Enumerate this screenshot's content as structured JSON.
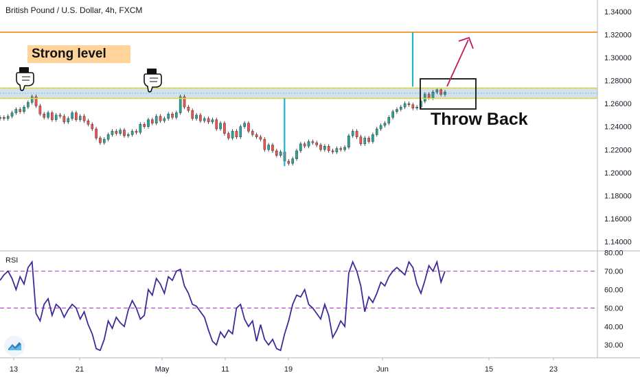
{
  "header": {
    "title": "British Pound / U.S. Dollar, 4h, FXCM"
  },
  "annotations": {
    "strong_level": "Strong level",
    "throw_back": "Throw Back"
  },
  "rsi_panel": {
    "label": "RSI"
  },
  "colors": {
    "candle_up": "#26a69a",
    "candle_down": "#ef5350",
    "resistance_line": "#f57c00",
    "zone_line": "#e6d23c",
    "zone_fill": "#cfe3ef",
    "measure": "#1fb3cb",
    "arrow": "#c2185b",
    "rsi_line": "#3c2a9a",
    "rsi_levels": "#b14fc6"
  },
  "icons": {
    "hand": "pointing-hand-icon",
    "logo": "tradingview-logo-icon"
  },
  "chart_data": [
    {
      "type": "candlestick",
      "title": "British Pound / U.S. Dollar, 4h, FXCM",
      "x_ticks": [
        "13",
        "21",
        "May",
        "11",
        "19",
        "Jun",
        "15",
        "23"
      ],
      "y_ticks": [
        "1.14000",
        "1.16000",
        "1.18000",
        "1.20000",
        "1.22000",
        "1.24000",
        "1.26000",
        "1.28000",
        "1.30000",
        "1.32000",
        "1.34000"
      ],
      "ylim": [
        1.132,
        1.35
      ],
      "horizontal_levels": [
        1.322,
        1.2735,
        1.2645
      ],
      "series": [
        {
          "values": [
            1.248,
            1.247,
            1.249,
            1.252,
            1.255,
            1.253,
            1.257,
            1.261,
            1.266,
            1.258,
            1.251,
            1.248,
            1.252,
            1.246,
            1.25,
            1.249,
            1.244,
            1.247,
            1.252,
            1.246,
            1.249,
            1.245,
            1.242,
            1.238,
            1.23,
            1.226,
            1.229,
            1.233,
            1.236,
            1.234,
            1.237,
            1.232,
            1.233,
            1.236,
            1.235,
            1.242,
            1.24,
            1.246,
            1.243,
            1.249,
            1.245,
            1.247,
            1.251,
            1.248,
            1.252,
            1.266,
            1.257,
            1.254,
            1.247,
            1.25,
            1.245,
            1.247,
            1.244,
            1.246,
            1.238,
            1.243,
            1.234,
            1.23,
            1.236,
            1.231,
            1.24,
            1.243,
            1.236,
            1.233,
            1.231,
            1.229,
            1.22,
            1.224,
            1.219,
            1.215,
            1.218,
            1.21,
            1.208,
            1.212,
            1.219,
            1.225,
            1.223,
            1.227,
            1.226,
            1.224,
            1.22,
            1.223,
            1.219,
            1.218,
            1.221,
            1.22,
            1.222,
            1.232,
            1.236,
            1.231,
            1.225,
            1.23,
            1.227,
            1.233,
            1.238,
            1.241,
            1.243,
            1.248,
            1.253,
            1.255,
            1.257,
            1.26,
            1.259,
            1.256,
            1.257,
            1.262,
            1.268,
            1.265,
            1.27,
            1.272,
            1.268,
            1.27
          ]
        }
      ]
    },
    {
      "type": "line",
      "title": "RSI",
      "y_ticks": [
        "30.00",
        "40.00",
        "50.00",
        "60.00",
        "70.00",
        "80.00"
      ],
      "ylim": [
        23,
        81
      ],
      "levels": [
        70,
        50
      ],
      "series": [
        {
          "name": "RSI",
          "values": [
            65,
            68,
            70,
            66,
            60,
            67,
            63,
            72,
            75,
            47,
            43,
            52,
            55,
            46,
            52,
            50,
            45,
            49,
            52,
            50,
            44,
            48,
            41,
            36,
            28,
            27,
            33,
            43,
            39,
            45,
            42,
            40,
            49,
            54,
            50,
            44,
            46,
            60,
            57,
            66,
            63,
            58,
            67,
            65,
            70,
            71,
            62,
            58,
            52,
            51,
            48,
            45,
            38,
            32,
            30,
            37,
            34,
            38,
            36,
            50,
            52,
            44,
            40,
            43,
            32,
            41,
            33,
            30,
            33,
            28,
            27,
            36,
            43,
            52,
            57,
            56,
            60,
            52,
            50,
            47,
            44,
            52,
            46,
            34,
            38,
            43,
            40,
            69,
            75,
            70,
            62,
            48,
            56,
            53,
            58,
            64,
            62,
            67,
            70,
            72,
            70,
            68,
            75,
            72,
            63,
            58,
            65,
            73,
            70,
            75,
            64,
            70
          ]
        }
      ]
    }
  ]
}
